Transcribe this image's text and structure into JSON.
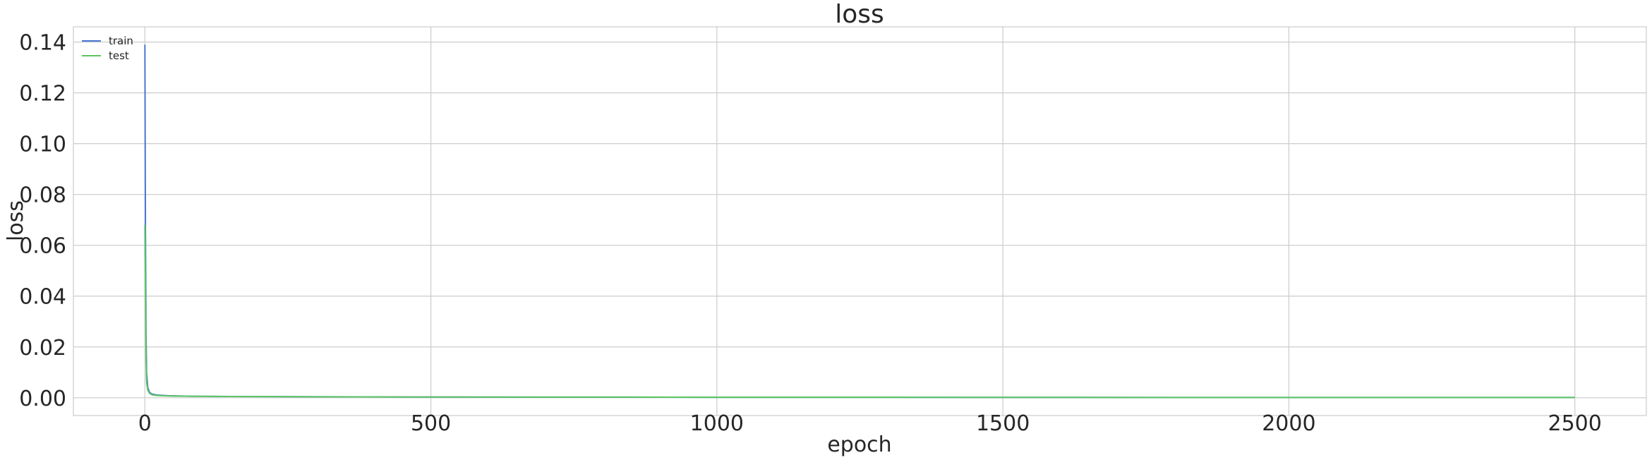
{
  "chart_data": {
    "type": "line",
    "title": "loss",
    "xlabel": "epoch",
    "ylabel": "loss",
    "xlim": [
      -125,
      2625
    ],
    "ylim": [
      -0.007,
      0.146
    ],
    "xticks": [
      0,
      500,
      1000,
      1500,
      2000,
      2500
    ],
    "xtick_labels": [
      "0",
      "500",
      "1000",
      "1500",
      "2000",
      "2500"
    ],
    "yticks": [
      0.0,
      0.02,
      0.04,
      0.06,
      0.08,
      0.1,
      0.12,
      0.14
    ],
    "ytick_labels": [
      "0.00",
      "0.02",
      "0.04",
      "0.06",
      "0.08",
      "0.10",
      "0.12",
      "0.14"
    ],
    "grid": true,
    "legend_position": "top-left",
    "series": [
      {
        "name": "train",
        "color": "#4878d0",
        "x": [
          0,
          1,
          2,
          3,
          5,
          8,
          12,
          20,
          40,
          80,
          150,
          300,
          500,
          800,
          1000,
          1300,
          1500,
          2000,
          2500
        ],
        "y": [
          0.139,
          0.065,
          0.025,
          0.01,
          0.004,
          0.0022,
          0.0015,
          0.0011,
          0.0008,
          0.0006,
          0.0005,
          0.0004,
          0.0003,
          0.00025,
          0.0002,
          0.00018,
          0.00015,
          0.0001,
          0.0001
        ]
      },
      {
        "name": "test",
        "color": "#5cc663",
        "x": [
          0,
          1,
          2,
          3,
          5,
          8,
          12,
          20,
          40,
          80,
          150,
          300,
          500,
          800,
          1000,
          1300,
          1500,
          2000,
          2500
        ],
        "y": [
          0.068,
          0.04,
          0.015,
          0.006,
          0.003,
          0.0018,
          0.0012,
          0.0009,
          0.0007,
          0.0006,
          0.0005,
          0.0004,
          0.0003,
          0.00025,
          0.0002,
          0.00018,
          0.00015,
          0.0001,
          0.0001
        ]
      }
    ]
  }
}
